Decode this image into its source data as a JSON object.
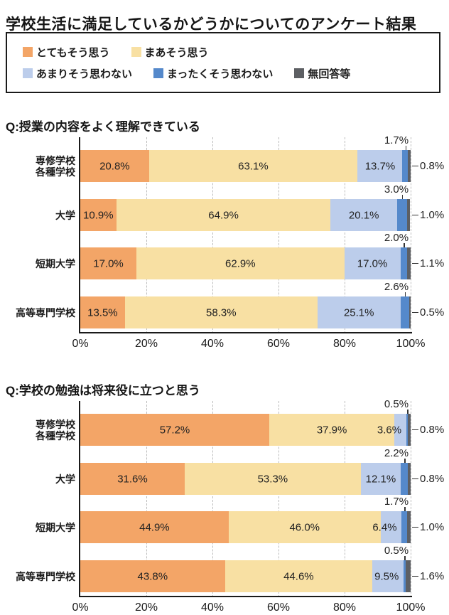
{
  "title": "学校生活に満足しているかどうかについてのアンケート結果",
  "legend": {
    "items": [
      {
        "label": "とてもそう思う",
        "color": "#f3a567"
      },
      {
        "label": "まあそう思う",
        "color": "#f8e0a3"
      },
      {
        "label": "あまりそう思わない",
        "color": "#bccdeb"
      },
      {
        "label": "まったくそう思わない",
        "color": "#5589cb"
      },
      {
        "label": "無回答等",
        "color": "#5d5f63"
      }
    ]
  },
  "chart_data": [
    {
      "type": "bar",
      "stacked": true,
      "orientation": "horizontal",
      "title": "Q:授業の内容をよく理解できている",
      "categories": [
        "専修学校\n各種学校",
        "大学",
        "短期大学",
        "高等専門学校"
      ],
      "series": [
        {
          "name": "とてもそう思う",
          "values": [
            20.8,
            10.9,
            17.0,
            13.5
          ]
        },
        {
          "name": "まあそう思う",
          "values": [
            63.1,
            64.9,
            62.9,
            58.3
          ]
        },
        {
          "name": "あまりそう思わない",
          "values": [
            13.7,
            20.1,
            17.0,
            25.1
          ]
        },
        {
          "name": "まったくそう思わない",
          "values": [
            1.7,
            3.0,
            2.0,
            2.6
          ]
        },
        {
          "name": "無回答等",
          "values": [
            0.8,
            1.0,
            1.1,
            0.5
          ]
        }
      ],
      "x_ticks": [
        "0%",
        "20%",
        "40%",
        "60%",
        "80%",
        "100%"
      ],
      "xlim": [
        0,
        100
      ],
      "grid": "dashed-vertical",
      "legend_position": "top-shared"
    },
    {
      "type": "bar",
      "stacked": true,
      "orientation": "horizontal",
      "title": "Q:学校の勉強は将来役に立つと思う",
      "categories": [
        "専修学校\n各種学校",
        "大学",
        "短期大学",
        "高等専門学校"
      ],
      "series": [
        {
          "name": "とてもそう思う",
          "values": [
            57.2,
            31.6,
            44.9,
            43.8
          ]
        },
        {
          "name": "まあそう思う",
          "values": [
            37.9,
            53.3,
            46.0,
            44.6
          ]
        },
        {
          "name": "あまりそう思わない",
          "values": [
            3.6,
            12.1,
            6.4,
            9.5
          ]
        },
        {
          "name": "まったくそう思わない",
          "values": [
            0.5,
            2.2,
            1.7,
            0.5
          ]
        },
        {
          "name": "無回答等",
          "values": [
            0.8,
            0.8,
            1.0,
            1.6
          ]
        }
      ],
      "x_ticks": [
        "0%",
        "20%",
        "40%",
        "60%",
        "80%",
        "100%"
      ],
      "xlim": [
        0,
        100
      ],
      "grid": "dashed-vertical",
      "legend_position": "top-shared"
    }
  ]
}
